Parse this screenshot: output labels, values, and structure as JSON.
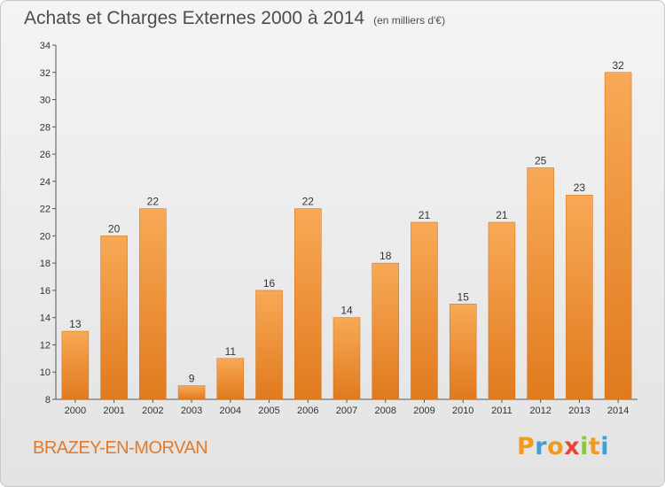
{
  "title": {
    "main": "Achats et Charges Externes 2000 à 2014",
    "sub": "(en milliers d'€)"
  },
  "place_name": "BRAZEY-EN-MORVAN",
  "logo": {
    "letters": [
      "P",
      "r",
      "o",
      "x",
      "i",
      "t",
      "i"
    ],
    "colors": [
      "#f29a1f",
      "#3aa0d8",
      "#f29a1f",
      "#e8413c",
      "#8dc63f",
      "#f29a1f",
      "#3aa0d8"
    ]
  },
  "colors": {
    "bar_top": "#f8a956",
    "bar_bottom": "#e07a1e",
    "bar_edge": "#d06c12",
    "place": "#e07a2c"
  },
  "chart_data": {
    "type": "bar",
    "categories": [
      "2000",
      "2001",
      "2002",
      "2003",
      "2004",
      "2005",
      "2006",
      "2007",
      "2008",
      "2009",
      "2010",
      "2011",
      "2012",
      "2013",
      "2014"
    ],
    "values": [
      13,
      20,
      22,
      9,
      11,
      16,
      22,
      14,
      18,
      21,
      15,
      21,
      25,
      23,
      32
    ],
    "title": "Achats et Charges Externes 2000 à 2014",
    "ylim": [
      8,
      34
    ],
    "yticks": [
      8,
      10,
      12,
      14,
      16,
      18,
      20,
      22,
      24,
      26,
      28,
      30,
      32,
      34
    ],
    "grid": false,
    "data_labels": true
  }
}
